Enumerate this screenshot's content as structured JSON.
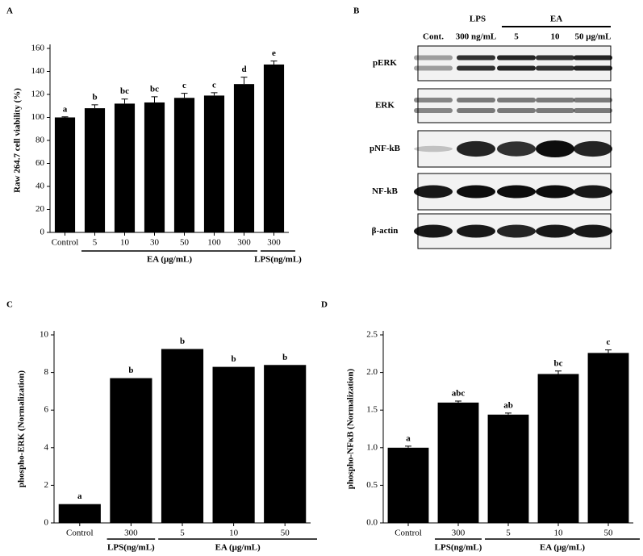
{
  "chart_data": [
    {
      "type": "bar",
      "panel": "A",
      "ylabel": "Raw 264.7 cell viability (%)",
      "categories": [
        "Control",
        "5",
        "10",
        "30",
        "50",
        "100",
        "300",
        "300"
      ],
      "values": [
        100,
        108,
        112,
        113,
        117,
        119,
        129,
        146
      ],
      "errors": [
        0.5,
        3,
        4,
        5,
        4,
        2.5,
        6,
        3
      ],
      "annotations": [
        "a",
        "b",
        "bc",
        "bc",
        "c",
        "c",
        "d",
        "e"
      ],
      "groups": [
        {
          "label": "EA (μg/mL)",
          "start": 1,
          "end": 6
        },
        {
          "label": "LPS(ng/mL)",
          "start": 7,
          "end": 7
        }
      ],
      "color": "#000000",
      "ylim": [
        0,
        160
      ],
      "yticks": [
        0,
        20,
        40,
        60,
        80,
        100,
        120,
        140,
        160
      ]
    },
    {
      "type": "blot",
      "panel": "B",
      "treatments": [
        {
          "label": "LPS",
          "start": 1,
          "end": 1
        },
        {
          "label": "EA",
          "start": 2,
          "end": 4
        }
      ],
      "lanes": [
        "Cont.",
        "300 ng/mL",
        "5",
        "10",
        "50 μg/mL"
      ],
      "rows": [
        "pERK",
        "ERK",
        "pNF-kB",
        "NF-kB",
        "β-actin"
      ]
    },
    {
      "type": "bar",
      "panel": "C",
      "ylabel": "phospho-ERK (Normalization)",
      "categories": [
        "Control",
        "300",
        "5",
        "10",
        "50"
      ],
      "values": [
        1.0,
        7.7,
        9.25,
        8.3,
        8.4
      ],
      "annotations": [
        "a",
        "b",
        "b",
        "b",
        "b"
      ],
      "groups": [
        {
          "label": "LPS(ng/mL)",
          "start": 1,
          "end": 1
        },
        {
          "label": "EA (μg/mL)",
          "start": 2,
          "end": 4
        }
      ],
      "color": "#000000",
      "ylim": [
        0,
        10
      ],
      "yticks": [
        0,
        2,
        4,
        6,
        8,
        10
      ]
    },
    {
      "type": "bar",
      "panel": "D",
      "ylabel": "phospho-NFκB (Normalization)",
      "categories": [
        "Control",
        "300",
        "5",
        "10",
        "50"
      ],
      "values": [
        1.0,
        1.6,
        1.44,
        1.98,
        2.26
      ],
      "errors": [
        0.02,
        0.02,
        0.02,
        0.04,
        0.04
      ],
      "annotations": [
        "a",
        "abc",
        "ab",
        "bc",
        "c"
      ],
      "groups": [
        {
          "label": "LPS(ng/mL)",
          "start": 1,
          "end": 1
        },
        {
          "label": "EA (μg/mL)",
          "start": 2,
          "end": 4
        }
      ],
      "color": "#000000",
      "ylim": [
        0,
        2.5
      ],
      "yticks": [
        {
          "value": 0,
          "label": "0.0"
        },
        0.5,
        {
          "value": 1,
          "label": "1.0"
        },
        1.5,
        {
          "value": 2,
          "label": "2.0"
        },
        2.5
      ]
    }
  ]
}
